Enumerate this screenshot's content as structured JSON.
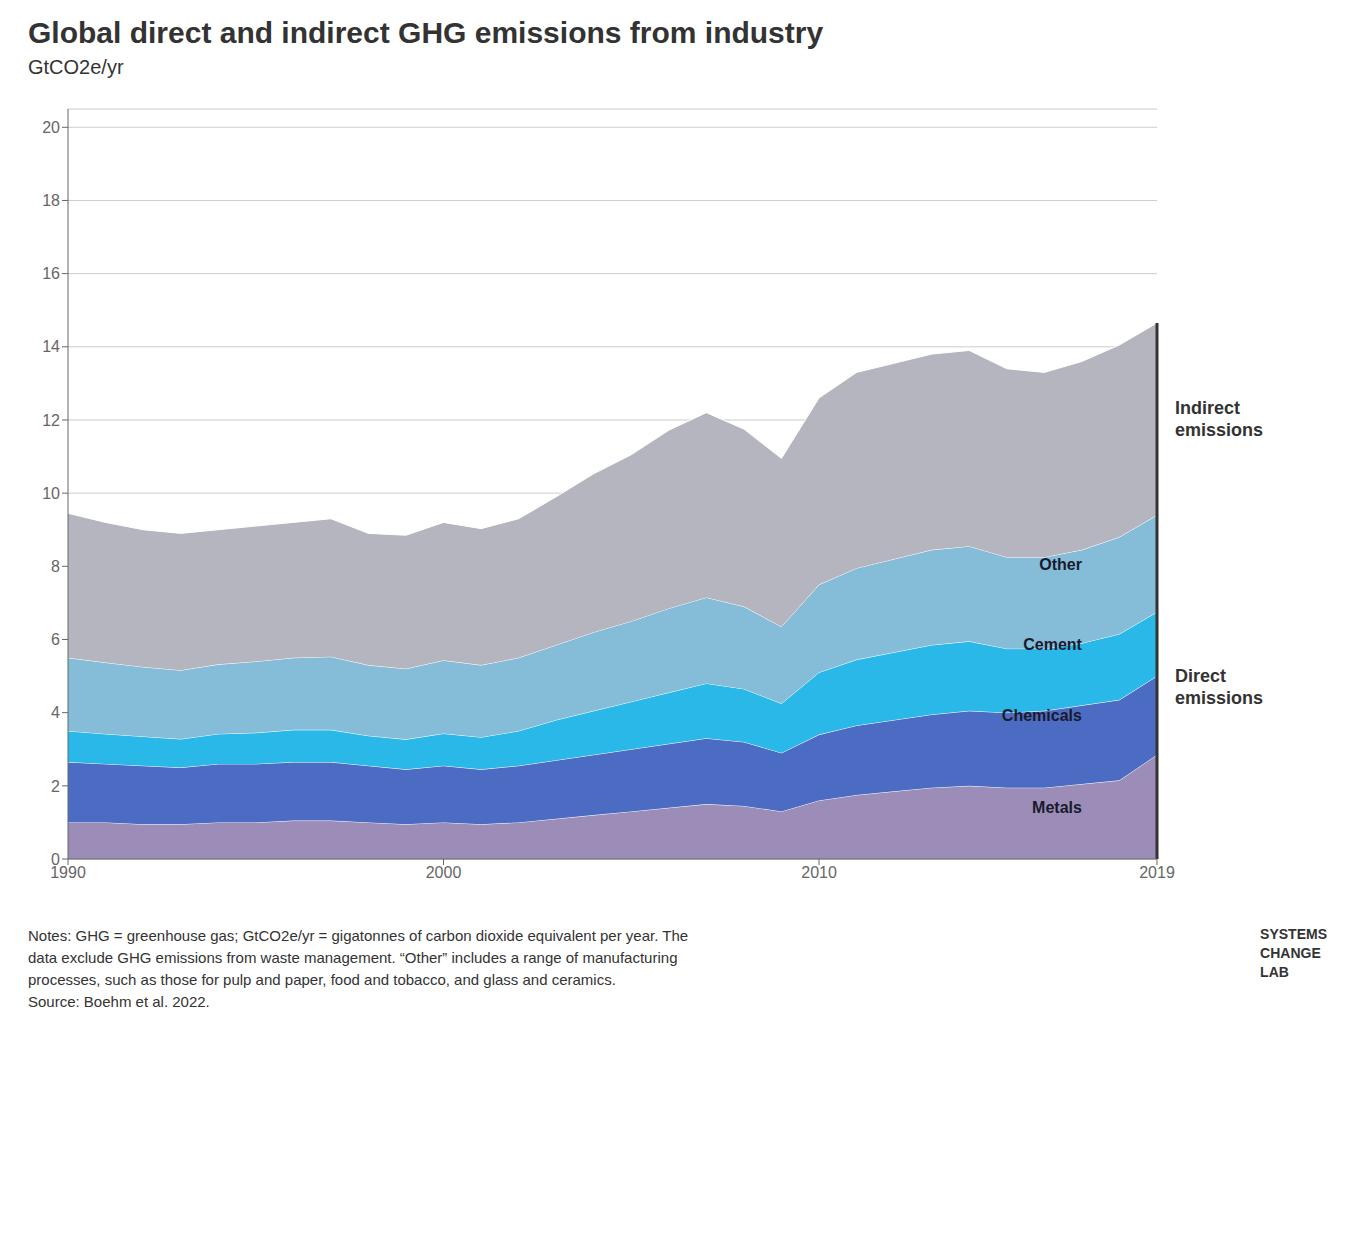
{
  "chart_data": {
    "type": "area",
    "stacked": true,
    "grid": true,
    "title": "Global direct and indirect GHG emissions from industry",
    "subtitle": "GtCO2e/yr",
    "x": [
      1990,
      1991,
      1992,
      1993,
      1994,
      1995,
      1996,
      1997,
      1998,
      1999,
      2000,
      2001,
      2002,
      2003,
      2004,
      2005,
      2006,
      2007,
      2008,
      2009,
      2010,
      2011,
      2012,
      2013,
      2014,
      2015,
      2016,
      2017,
      2018,
      2019
    ],
    "xlim": [
      1990,
      2019
    ],
    "xticks": [
      1990,
      2000,
      2010,
      2019
    ],
    "ylim": [
      0,
      20.5
    ],
    "yticks": [
      0,
      2,
      4,
      6,
      8,
      10,
      12,
      14,
      16,
      18,
      20
    ],
    "series": [
      {
        "name": "Metals",
        "color": "#9b8db8",
        "values": [
          1.0,
          1.0,
          0.95,
          0.95,
          1.0,
          1.0,
          1.05,
          1.05,
          1.0,
          0.95,
          1.0,
          0.95,
          1.0,
          1.1,
          1.2,
          1.3,
          1.4,
          1.5,
          1.45,
          1.3,
          1.6,
          1.75,
          1.85,
          1.95,
          2.0,
          1.95,
          1.95,
          2.05,
          2.15,
          2.85
        ]
      },
      {
        "name": "Chemicals",
        "color": "#4c6cc4",
        "values": [
          1.65,
          1.6,
          1.6,
          1.55,
          1.6,
          1.6,
          1.6,
          1.6,
          1.55,
          1.5,
          1.55,
          1.5,
          1.55,
          1.6,
          1.65,
          1.7,
          1.75,
          1.8,
          1.75,
          1.6,
          1.8,
          1.9,
          1.95,
          2.0,
          2.05,
          2.05,
          2.1,
          2.15,
          2.2,
          2.15
        ]
      },
      {
        "name": "Cement",
        "color": "#2ab8e8",
        "values": [
          0.85,
          0.82,
          0.8,
          0.78,
          0.82,
          0.85,
          0.88,
          0.88,
          0.82,
          0.82,
          0.88,
          0.88,
          0.95,
          1.1,
          1.2,
          1.3,
          1.4,
          1.5,
          1.45,
          1.35,
          1.7,
          1.8,
          1.85,
          1.9,
          1.9,
          1.75,
          1.7,
          1.7,
          1.8,
          1.75
        ]
      },
      {
        "name": "Other",
        "color": "#85bcd8",
        "values": [
          2.0,
          1.95,
          1.9,
          1.88,
          1.9,
          1.95,
          1.97,
          2.0,
          1.93,
          1.93,
          2.0,
          1.97,
          2.0,
          2.05,
          2.15,
          2.2,
          2.3,
          2.35,
          2.25,
          2.1,
          2.4,
          2.5,
          2.55,
          2.6,
          2.6,
          2.5,
          2.5,
          2.55,
          2.65,
          2.65
        ]
      },
      {
        "color": "#b5b5c0",
        "values": [
          3.95,
          3.83,
          3.75,
          3.74,
          3.68,
          3.7,
          3.7,
          3.77,
          3.6,
          3.65,
          3.77,
          3.73,
          3.8,
          4.05,
          4.33,
          4.55,
          4.87,
          5.05,
          4.85,
          4.6,
          5.1,
          5.35,
          5.35,
          5.35,
          5.35,
          5.15,
          5.05,
          5.15,
          5.25,
          5.25
        ]
      }
    ],
    "annotations": [
      {
        "text": "Direct\nemissions",
        "series": [
          0,
          1,
          2,
          3
        ]
      },
      {
        "text": "Indirect\nemissions",
        "series": [
          4
        ]
      }
    ],
    "notes": [
      "Notes: GHG = greenhouse gas; GtCO2e/yr = gigatonnes of carbon dioxide equivalent per year. The",
      "data exclude GHG emissions from waste management. “Other” includes a range of manufacturing",
      "processes, such as those for pulp and paper, food and tobacco, and glass and ceramics.",
      "Source: Boehm et al. 2022."
    ],
    "logo_text": "SYSTEMS\nCHANGE\nLAB"
  }
}
